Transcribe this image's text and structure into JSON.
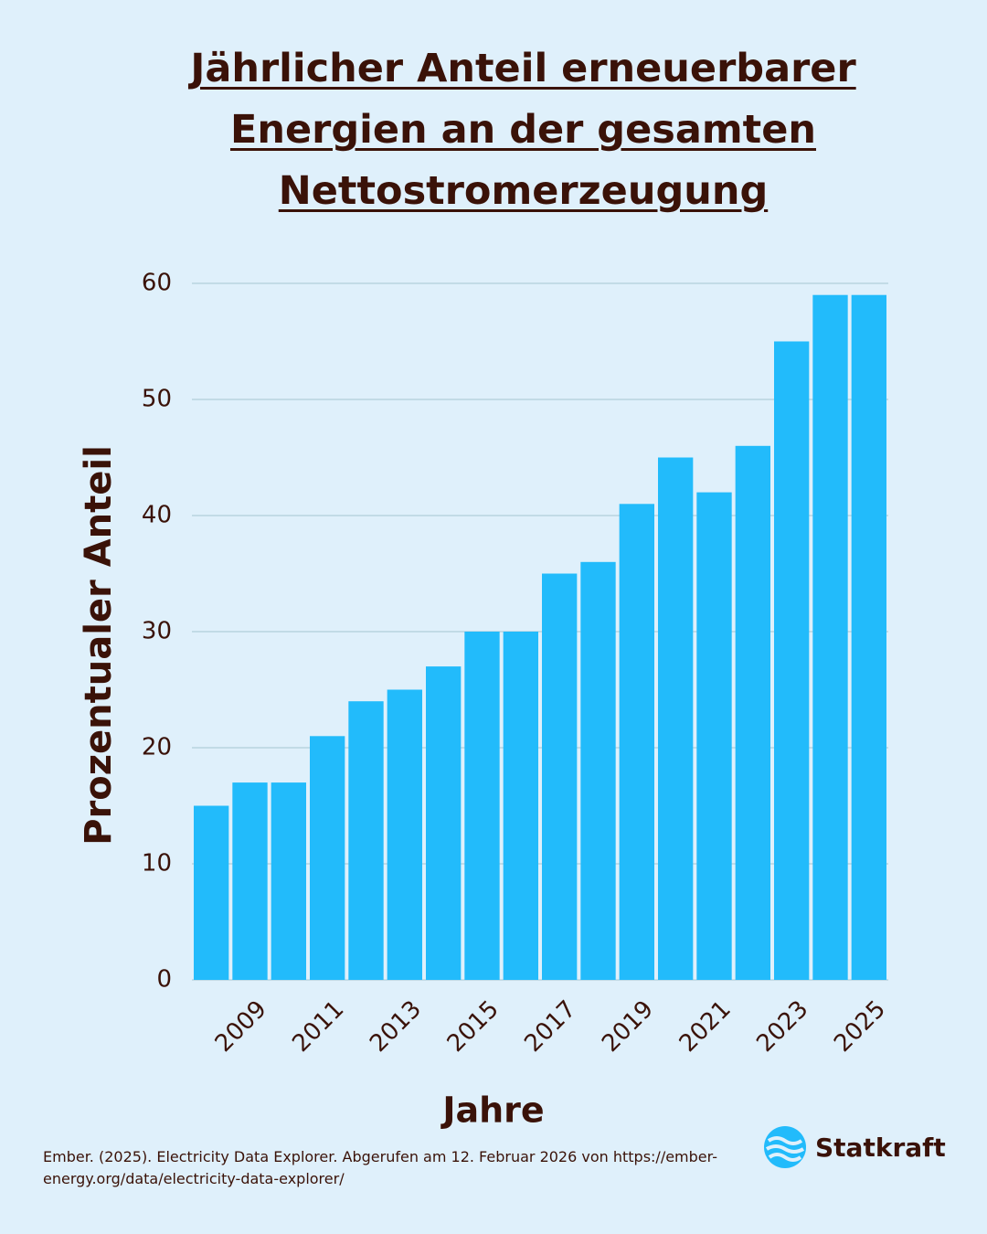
{
  "chart_data": {
    "type": "bar",
    "title": "Jährlicher Anteil erneuerbarer Energien an der gesamten Nettostromerzeugung",
    "categories": [
      null,
      "2009",
      null,
      "2011",
      null,
      "2013",
      null,
      "2015",
      null,
      "2017",
      null,
      "2019",
      null,
      "2021",
      null,
      "2023",
      null,
      "2025"
    ],
    "values": [
      15,
      17,
      17,
      21,
      24,
      25,
      27,
      30,
      30,
      35,
      36,
      41,
      45,
      42,
      46,
      55,
      59,
      59
    ],
    "color": "#22bbfb",
    "ylim": [
      0,
      60
    ],
    "yticks": [
      0,
      10,
      20,
      30,
      40,
      50,
      60
    ],
    "grid": true,
    "y_label": "Prozentualer Anteil",
    "x_label": "Jahre"
  },
  "source": "Ember. (2025). Electricity Data Explorer. Abgerufen am 12. Februar 2026 von https://ember-energy.org/data/electricity-data-explorer/",
  "logo": "Statkraft"
}
